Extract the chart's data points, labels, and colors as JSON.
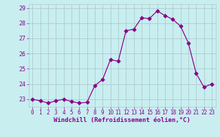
{
  "x": [
    0,
    1,
    2,
    3,
    4,
    5,
    6,
    7,
    8,
    9,
    10,
    11,
    12,
    13,
    14,
    15,
    16,
    17,
    18,
    19,
    20,
    21,
    22,
    23
  ],
  "y": [
    23.0,
    22.9,
    22.75,
    22.9,
    23.0,
    22.85,
    22.75,
    22.8,
    23.9,
    24.3,
    25.6,
    25.5,
    27.5,
    27.6,
    28.35,
    28.3,
    28.8,
    28.5,
    28.25,
    27.8,
    26.7,
    24.7,
    23.8,
    24.0
  ],
  "xlabel": "Windchill (Refroidissement éolien,°C)",
  "xlim_min": -0.5,
  "xlim_max": 23.5,
  "ylim_min": 22.5,
  "ylim_max": 29.25,
  "yticks": [
    23,
    24,
    25,
    26,
    27,
    28,
    29
  ],
  "xtick_labels": [
    "0",
    "1",
    "2",
    "3",
    "4",
    "5",
    "6",
    "7",
    "8",
    "9",
    "10",
    "11",
    "12",
    "13",
    "14",
    "15",
    "16",
    "17",
    "18",
    "19",
    "20",
    "21",
    "22",
    "23"
  ],
  "line_color": "#8b008b",
  "marker": "D",
  "marker_size": 2.5,
  "bg_color": "#c8eef0",
  "grid_color": "#b0c8cc",
  "tick_color": "#8b008b",
  "label_fontsize": 6.5,
  "tick_fontsize": 5.5
}
